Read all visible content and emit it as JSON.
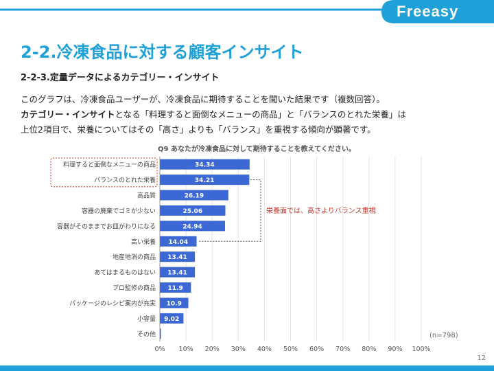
{
  "header": {
    "logo_text": "Freeasy"
  },
  "title": "2-2.冷凍食品に対する顧客インサイト",
  "subtitle": "2-2-3.定量データによるカテゴリー・インサイト",
  "body": {
    "line1": "このグラフは、冷凍食品ユーザーが、冷凍食品に期待することを聞いた結果です（複数回答）。",
    "line2_bold": "カテゴリー・インサイト",
    "line2_rest": "となる「料理すると面倒なメニューの商品」と「バランスのとれた栄養」は",
    "line3": "上位2項目で、栄養についてはその「高さ」よりも「バランス」を重視する傾向が顕著です。"
  },
  "callout": "栄養面では、高さよりバランス重視",
  "page_number": "12",
  "colors": {
    "accent": "#1ea0d8",
    "bar": "#3c68d6",
    "callout": "#c0392b"
  },
  "chart_data": {
    "type": "bar",
    "orientation": "horizontal",
    "title": "Q9 あなたが冷凍食品に対して期待することを教えてください。",
    "categories": [
      "料理すると面倒なメニューの商品",
      "バランスのとれた栄養",
      "高品質",
      "容器の廃棄でゴミが少ない",
      "容器がそのままでお皿がわりになる",
      "高い栄養",
      "地産地消の商品",
      "あてはまるものはない",
      "プロ監修の商品",
      "パッケージのレシピ案内が充実",
      "小容量",
      "その他"
    ],
    "values": [
      34.34,
      34.21,
      26.19,
      25.06,
      24.94,
      14.04,
      13.41,
      13.41,
      11.9,
      10.9,
      9.02,
      0.2
    ],
    "value_labels": [
      "34.34",
      "34.21",
      "26.19",
      "25.06",
      "24.94",
      "14.04",
      "13.41",
      "13.41",
      "11.9",
      "10.9",
      "9.02",
      ""
    ],
    "xlim": [
      0,
      100
    ],
    "xticks": [
      "0%",
      "10%",
      "20%",
      "30%",
      "40%",
      "50%",
      "60%",
      "70%",
      "80%",
      "90%",
      "100%"
    ],
    "grid": true,
    "annotation": "(n=798)"
  }
}
